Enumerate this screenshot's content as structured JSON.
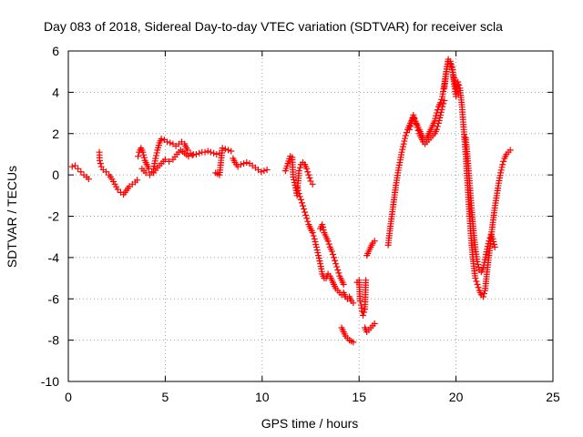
{
  "chart_data": {
    "type": "scatter",
    "title": "Day 083 of 2018, Sidereal Day-to-day VTEC variation (SDTVAR) for receiver scla",
    "xlabel": "GPS time / hours",
    "ylabel": "SDTVAR / TECUs",
    "xlim": [
      0,
      25
    ],
    "ylim": [
      -10,
      6
    ],
    "xticks": [
      0,
      5,
      10,
      15,
      20,
      25
    ],
    "xtick_labels": [
      "0",
      "5",
      "10",
      "15",
      "20",
      "25"
    ],
    "yticks": [
      -10,
      -8,
      -6,
      -4,
      -2,
      0,
      2,
      4,
      6
    ],
    "ytick_labels": [
      "-10",
      "-8",
      "-6",
      "-4",
      "-2",
      "0",
      "2",
      "4",
      "6"
    ],
    "grid": true,
    "marker": "+",
    "series_color": "#ff0000",
    "series": [
      {
        "name": "SDTVAR",
        "segments": [
          {
            "x": [
              0.2,
              0.35,
              0.5,
              0.65,
              0.8,
              0.95,
              1.05
            ],
            "y": [
              0.4,
              0.45,
              0.3,
              0.15,
              0.0,
              -0.1,
              -0.2
            ]
          },
          {
            "x": [
              1.6,
              1.62,
              1.7,
              1.8,
              1.95,
              2.1,
              2.25,
              2.4,
              2.55,
              2.7,
              2.85,
              3.0,
              3.15,
              3.3,
              3.45,
              3.55
            ],
            "y": [
              1.1,
              0.7,
              0.4,
              0.25,
              0.15,
              0.0,
              -0.2,
              -0.45,
              -0.7,
              -0.85,
              -0.95,
              -0.75,
              -0.55,
              -0.45,
              -0.35,
              -0.25
            ]
          },
          {
            "x": [
              3.6,
              3.65,
              3.75,
              3.85,
              3.95,
              4.05,
              4.15,
              4.3,
              4.4,
              4.5,
              4.6,
              4.7,
              4.8,
              4.95,
              5.1,
              5.25,
              5.4,
              5.55,
              5.7,
              5.85,
              6.0,
              6.15,
              6.3,
              6.45,
              6.6,
              6.75,
              6.9,
              7.05,
              7.2,
              7.35,
              7.5,
              7.65,
              7.8
            ],
            "y": [
              0.9,
              1.1,
              1.3,
              1.1,
              0.7,
              0.5,
              0.3,
              0.15,
              0.3,
              0.8,
              1.2,
              1.55,
              1.75,
              1.7,
              1.6,
              1.55,
              1.5,
              1.4,
              1.5,
              1.6,
              1.5,
              1.2,
              1.05,
              1.0,
              1.0,
              1.05,
              1.1,
              1.1,
              1.15,
              1.1,
              1.05,
              1.0,
              1.05
            ]
          },
          {
            "x": [
              3.8,
              4.0,
              4.2,
              4.4,
              4.6,
              4.8,
              5.0,
              5.2,
              5.4,
              5.6,
              5.8,
              6.0,
              6.2,
              6.4
            ],
            "y": [
              0.3,
              0.1,
              0.0,
              0.1,
              0.35,
              0.55,
              0.75,
              0.65,
              0.75,
              1.0,
              1.2,
              1.05,
              0.9,
              0.95
            ]
          },
          {
            "x": [
              7.6,
              7.7,
              7.8,
              7.95,
              8.1,
              8.25,
              8.4
            ],
            "y": [
              0.1,
              0.05,
              0.0,
              1.3,
              1.25,
              1.2,
              1.15
            ]
          },
          {
            "x": [
              8.5,
              8.6,
              8.75,
              8.9,
              9.05,
              9.2,
              9.35,
              9.5,
              9.65,
              9.8,
              9.95,
              10.1,
              10.25
            ],
            "y": [
              0.8,
              0.6,
              0.4,
              0.5,
              0.55,
              0.6,
              0.55,
              0.45,
              0.35,
              0.25,
              0.15,
              0.2,
              0.25
            ]
          },
          {
            "x": [
              11.2,
              11.45,
              11.55,
              11.6,
              11.7,
              11.8,
              11.9,
              12.0,
              12.1,
              12.2,
              12.3,
              12.4,
              12.5,
              12.6
            ],
            "y": [
              0.2,
              0.9,
              0.85,
              -0.1,
              -0.5,
              -1.0,
              0.2,
              0.5,
              0.6,
              0.5,
              0.3,
              0.0,
              -0.3,
              -0.45
            ]
          },
          {
            "x": [
              11.8,
              11.9,
              12.0,
              12.1,
              12.2,
              12.3,
              12.4,
              12.5,
              12.6,
              12.7,
              12.8,
              12.9,
              13.0,
              13.1,
              13.2,
              13.3,
              13.4,
              13.5,
              13.6,
              13.7,
              13.8,
              13.9,
              14.0,
              14.1,
              14.2,
              14.3,
              14.4,
              14.5,
              14.6,
              14.7
            ],
            "y": [
              -0.6,
              -0.9,
              -1.2,
              -1.5,
              -1.8,
              -2.1,
              -2.4,
              -2.6,
              -2.8,
              -3.1,
              -3.5,
              -3.9,
              -4.3,
              -4.8,
              -5.0,
              -5.0,
              -4.8,
              -4.9,
              -5.1,
              -5.3,
              -5.5,
              -5.6,
              -5.7,
              -5.8,
              -5.7,
              -5.9,
              -6.0,
              -5.9,
              -6.1,
              -6.2
            ]
          },
          {
            "x": [
              13.0,
              13.1,
              13.2,
              13.3,
              13.4,
              13.5,
              13.6,
              13.7,
              13.8,
              13.9,
              14.0,
              14.1,
              14.2
            ],
            "y": [
              -2.6,
              -2.4,
              -2.8,
              -3.0,
              -3.2,
              -3.5,
              -3.7,
              -4.0,
              -4.3,
              -4.6,
              -4.9,
              -5.1,
              -5.3
            ]
          },
          {
            "x": [
              14.1,
              14.2,
              14.3,
              14.4,
              14.5,
              14.6,
              14.7
            ],
            "y": [
              -7.4,
              -7.6,
              -7.8,
              -7.9,
              -8.0,
              -8.05,
              -8.1
            ]
          },
          {
            "x": [
              14.9,
              15.0,
              15.05,
              15.1,
              15.15,
              15.2,
              15.3,
              15.35
            ],
            "y": [
              -5.2,
              -5.1,
              -6.1,
              -6.3,
              -6.6,
              -6.8,
              -6.5,
              -5.1
            ]
          },
          {
            "x": [
              15.3,
              15.4,
              15.5,
              15.6,
              15.7,
              15.8
            ],
            "y": [
              -7.4,
              -7.6,
              -7.5,
              -7.4,
              -7.3,
              -7.2
            ]
          },
          {
            "x": [
              15.4,
              15.5,
              15.6,
              15.7,
              15.8
            ],
            "y": [
              -3.9,
              -3.7,
              -3.5,
              -3.3,
              -3.2
            ]
          },
          {
            "x": [
              16.5,
              16.6,
              16.7,
              16.8,
              16.9,
              17.0,
              17.1,
              17.2,
              17.3,
              17.4,
              17.5,
              17.6,
              17.7,
              17.8,
              17.9,
              18.0,
              18.1,
              18.2,
              18.3,
              18.4,
              18.5,
              18.6,
              18.7,
              18.8,
              18.9,
              19.0,
              19.1,
              19.2,
              19.3,
              19.4,
              19.5,
              19.6,
              19.7,
              19.8,
              19.9,
              20.0
            ],
            "y": [
              -3.4,
              -2.6,
              -1.9,
              -1.2,
              -0.5,
              0.1,
              0.6,
              1.1,
              1.5,
              1.9,
              2.2,
              2.4,
              2.6,
              2.8,
              2.6,
              2.4,
              2.2,
              2.0,
              1.8,
              1.7,
              1.8,
              2.0,
              2.2,
              2.4,
              2.6,
              3.0,
              3.3,
              3.5,
              3.8,
              4.4,
              5.0,
              5.5,
              5.4,
              5.1,
              4.7,
              4.2
            ]
          },
          {
            "x": [
              17.6,
              17.7,
              17.8,
              17.9,
              18.0,
              18.1,
              18.2,
              18.3,
              18.4,
              18.5,
              18.6,
              18.7,
              18.8,
              18.9,
              19.0,
              19.1,
              19.2,
              19.3,
              19.4
            ],
            "y": [
              2.2,
              2.5,
              2.9,
              2.6,
              2.3,
              2.0,
              1.8,
              1.6,
              1.5,
              1.6,
              1.7,
              1.8,
              1.9,
              2.0,
              2.2,
              2.5,
              2.9,
              3.3,
              3.6
            ]
          },
          {
            "x": [
              19.4,
              19.5,
              19.6,
              19.7,
              19.8,
              19.9,
              20.0,
              20.1,
              20.2,
              20.3,
              20.4,
              20.5,
              20.6,
              20.7,
              20.8,
              20.9,
              21.0,
              21.1,
              21.2,
              21.3,
              21.4,
              21.5,
              21.6,
              21.7,
              21.8,
              21.9,
              22.0,
              22.1,
              22.2,
              22.3,
              22.4,
              22.5,
              22.6,
              22.7,
              22.8
            ],
            "y": [
              4.2,
              5.0,
              5.6,
              5.5,
              5.2,
              4.4,
              3.8,
              4.5,
              4.2,
              3.4,
              2.2,
              1.0,
              -0.5,
              -2.0,
              -3.3,
              -4.3,
              -5.0,
              -5.3,
              -5.6,
              -5.8,
              -5.9,
              -5.6,
              -4.7,
              -3.9,
              -3.1,
              -2.3,
              -1.6,
              -1.0,
              -0.4,
              0.1,
              0.5,
              0.8,
              1.0,
              1.1,
              1.2
            ]
          },
          {
            "x": [
              20.5,
              20.6,
              20.7,
              20.8,
              20.9,
              21.0,
              21.1,
              21.2,
              21.3,
              21.4,
              21.5,
              21.6,
              21.7,
              21.8,
              21.9,
              22.0
            ],
            "y": [
              1.8,
              0.8,
              -0.4,
              -1.6,
              -2.7,
              -3.6,
              -4.2,
              -4.6,
              -4.7,
              -4.5,
              -4.1,
              -3.6,
              -3.2,
              -2.9,
              -3.1,
              -3.5
            ]
          }
        ]
      }
    ]
  }
}
